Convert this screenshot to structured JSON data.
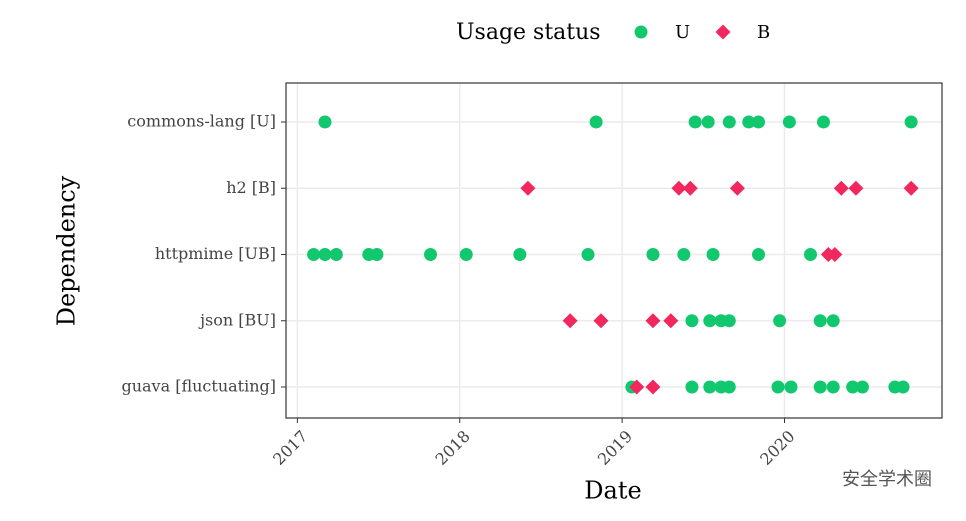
{
  "chart_data": {
    "type": "scatter",
    "x_label": "Date",
    "y_label": "Dependency",
    "legend_title": "Usage status",
    "categories": [
      "commons-lang [U]",
      "h2 [B]",
      "httpmime [UB]",
      "json [BU]",
      "guava [fluctuating]"
    ],
    "xlim": [
      2016.93,
      2020.97
    ],
    "xticks": [
      2017,
      2018,
      2019,
      2020
    ],
    "grid": true,
    "series": [
      {
        "name": "U",
        "color": "#12c86e",
        "marker": "circle",
        "x": [
          2017.17,
          2018.84,
          2019.45,
          2019.53,
          2019.66,
          2019.78,
          2019.84,
          2020.03,
          2020.24,
          2020.78,
          2017.1,
          2017.17,
          2017.24,
          2017.44,
          2017.49,
          2017.82,
          2018.04,
          2018.37,
          2018.79,
          2019.19,
          2019.38,
          2019.56,
          2019.84,
          2020.16,
          2019.43,
          2019.54,
          2019.61,
          2019.66,
          2019.97,
          2020.22,
          2020.3,
          2019.06,
          2019.43,
          2019.54,
          2019.61,
          2019.66,
          2019.96,
          2020.04,
          2020.22,
          2020.3,
          2020.42,
          2020.48,
          2020.68,
          2020.73
        ],
        "y": [
          "commons-lang [U]",
          "commons-lang [U]",
          "commons-lang [U]",
          "commons-lang [U]",
          "commons-lang [U]",
          "commons-lang [U]",
          "commons-lang [U]",
          "commons-lang [U]",
          "commons-lang [U]",
          "commons-lang [U]",
          "httpmime [UB]",
          "httpmime [UB]",
          "httpmime [UB]",
          "httpmime [UB]",
          "httpmime [UB]",
          "httpmime [UB]",
          "httpmime [UB]",
          "httpmime [UB]",
          "httpmime [UB]",
          "httpmime [UB]",
          "httpmime [UB]",
          "httpmime [UB]",
          "httpmime [UB]",
          "httpmime [UB]",
          "json [BU]",
          "json [BU]",
          "json [BU]",
          "json [BU]",
          "json [BU]",
          "json [BU]",
          "json [BU]",
          "guava [fluctuating]",
          "guava [fluctuating]",
          "guava [fluctuating]",
          "guava [fluctuating]",
          "guava [fluctuating]",
          "guava [fluctuating]",
          "guava [fluctuating]",
          "guava [fluctuating]",
          "guava [fluctuating]",
          "guava [fluctuating]",
          "guava [fluctuating]",
          "guava [fluctuating]",
          "guava [fluctuating]"
        ]
      },
      {
        "name": "B",
        "color": "#f2275d",
        "marker": "diamond",
        "x": [
          2018.42,
          2019.35,
          2019.42,
          2019.71,
          2020.35,
          2020.44,
          2020.78,
          2020.27,
          2020.31,
          2018.68,
          2018.87,
          2019.19,
          2019.3,
          2019.09,
          2019.19
        ],
        "y": [
          "h2 [B]",
          "h2 [B]",
          "h2 [B]",
          "h2 [B]",
          "h2 [B]",
          "h2 [B]",
          "h2 [B]",
          "httpmime [UB]",
          "httpmime [UB]",
          "json [BU]",
          "json [BU]",
          "json [BU]",
          "json [BU]",
          "guava [fluctuating]",
          "guava [fluctuating]"
        ]
      }
    ]
  },
  "watermark": "安全学术圈"
}
